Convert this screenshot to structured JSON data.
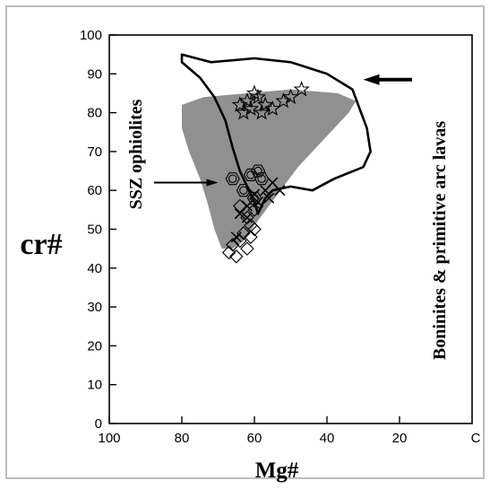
{
  "colors": {
    "background": "#ffffff",
    "field": "#909090",
    "stroke": "#000000",
    "frame": "#bdbdbd"
  },
  "chart_data": {
    "type": "scatter",
    "title": "",
    "xlabel": "Mg#",
    "ylabel": "cr#",
    "xlim": [
      100,
      0
    ],
    "ylim": [
      0,
      100
    ],
    "x_ticks": [
      "100",
      "80",
      "60",
      "40",
      "20",
      "C"
    ],
    "x_tick_values": [
      100,
      80,
      60,
      40,
      20,
      0
    ],
    "y_ticks": [
      "0",
      "10",
      "20",
      "30",
      "40",
      "50",
      "60",
      "70",
      "80",
      "90",
      "100"
    ],
    "y_tick_values": [
      0,
      10,
      20,
      30,
      40,
      50,
      60,
      70,
      80,
      90,
      100
    ],
    "grid": false,
    "regions": [
      {
        "name": "SSZ ophiolites",
        "style": "shaded",
        "polygon": [
          [
            80,
            82
          ],
          [
            74,
            84
          ],
          [
            62,
            85
          ],
          [
            50,
            86
          ],
          [
            37,
            85
          ],
          [
            32,
            83
          ],
          [
            34,
            80
          ],
          [
            38,
            76
          ],
          [
            42,
            72
          ],
          [
            48,
            66
          ],
          [
            52,
            61
          ],
          [
            56,
            56
          ],
          [
            60,
            51
          ],
          [
            63,
            47
          ],
          [
            66,
            45
          ],
          [
            69,
            45
          ],
          [
            71,
            50
          ],
          [
            73,
            57
          ],
          [
            75,
            63
          ],
          [
            78,
            70
          ],
          [
            80,
            76
          ]
        ]
      },
      {
        "name": "Boninites & primitive arc lavas",
        "style": "outline",
        "polygon": [
          [
            80,
            95
          ],
          [
            72,
            93
          ],
          [
            60,
            94
          ],
          [
            50,
            93
          ],
          [
            40,
            90
          ],
          [
            33,
            86
          ],
          [
            29,
            76
          ],
          [
            28,
            70
          ],
          [
            30,
            66
          ],
          [
            38,
            63
          ],
          [
            44,
            60
          ],
          [
            50,
            61
          ],
          [
            55,
            60
          ],
          [
            57,
            58
          ],
          [
            59,
            54
          ],
          [
            60,
            57
          ],
          [
            62,
            61
          ],
          [
            64,
            65
          ],
          [
            66,
            71
          ],
          [
            68,
            78
          ],
          [
            71,
            84
          ],
          [
            75,
            89
          ],
          [
            80,
            93
          ]
        ]
      }
    ],
    "annotations": [
      {
        "text": "SSZ ophiolites",
        "points_to": [
          70,
          62
        ]
      },
      {
        "text": "Boninites & primitive arc lavas",
        "points_to": [
          30,
          88.5
        ]
      }
    ],
    "series": [
      {
        "marker": "star",
        "values": [
          [
            64,
            82
          ],
          [
            62,
            83
          ],
          [
            61,
            81
          ],
          [
            59,
            84
          ],
          [
            58,
            80
          ],
          [
            57,
            82
          ],
          [
            60,
            85
          ],
          [
            55,
            81
          ],
          [
            52,
            83
          ],
          [
            50,
            84
          ],
          [
            47,
            86
          ],
          [
            63,
            80
          ]
        ]
      },
      {
        "marker": "hexagon",
        "values": [
          [
            66,
            63
          ],
          [
            61,
            64
          ],
          [
            59,
            65
          ],
          [
            58,
            63
          ],
          [
            63,
            60
          ],
          [
            60,
            58
          ]
        ]
      },
      {
        "marker": "cross",
        "values": [
          [
            57,
            60
          ],
          [
            55,
            62
          ],
          [
            53,
            60
          ],
          [
            60,
            59
          ],
          [
            62,
            56
          ],
          [
            64,
            54
          ],
          [
            59,
            57
          ],
          [
            56,
            58
          ],
          [
            62,
            53
          ],
          [
            65,
            48
          ]
        ]
      },
      {
        "marker": "diamond",
        "values": [
          [
            64,
            56
          ],
          [
            62,
            53
          ],
          [
            61,
            51
          ],
          [
            60,
            55
          ],
          [
            66,
            46
          ],
          [
            64,
            47
          ],
          [
            62,
            45
          ],
          [
            67,
            44
          ],
          [
            65,
            43
          ],
          [
            63,
            49
          ],
          [
            60,
            50
          ],
          [
            61,
            48
          ]
        ]
      }
    ]
  }
}
